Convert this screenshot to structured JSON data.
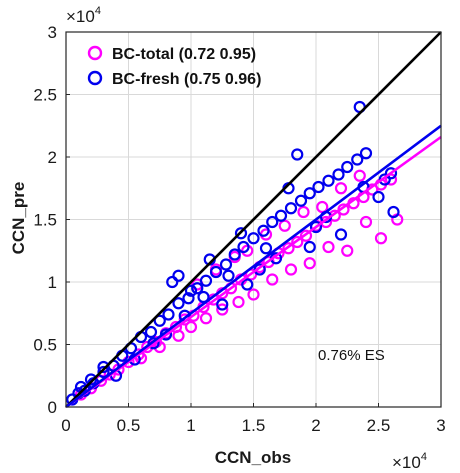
{
  "chart_data": {
    "type": "scatter",
    "xlabel": "CCN_obs",
    "ylabel": "CCN_pre",
    "xlim": [
      0,
      30000
    ],
    "ylim": [
      0,
      30000
    ],
    "xticks": [
      0,
      5000,
      10000,
      15000,
      20000,
      25000,
      30000
    ],
    "yticks": [
      0,
      5000,
      10000,
      15000,
      20000,
      25000,
      30000
    ],
    "xtick_labels": [
      "0",
      "0.5",
      "1",
      "1.5",
      "2",
      "2.5",
      "3"
    ],
    "ytick_labels": [
      "0",
      "0.5",
      "1",
      "1.5",
      "2",
      "2.5",
      "3"
    ],
    "x_exponent_base": "×10",
    "x_exponent_power": "4",
    "y_exponent_base": "×10",
    "y_exponent_power": "4",
    "grid": true,
    "legend_position": "top-left",
    "annotation": "0.76% ES",
    "one_to_one_line": {
      "x": [
        0,
        30000
      ],
      "y": [
        0,
        30000
      ],
      "color": "#000000"
    },
    "series": [
      {
        "name": "BC-total (0.72 0.95)",
        "color": "#ff00ff",
        "marker": "open-circle",
        "fit": {
          "slope": 0.72,
          "x_range": [
            0,
            30000
          ]
        },
        "points": [
          [
            1200,
            1000
          ],
          [
            2000,
            1500
          ],
          [
            2800,
            2100
          ],
          [
            3500,
            2600
          ],
          [
            4200,
            3000
          ],
          [
            5000,
            3600
          ],
          [
            5800,
            4200
          ],
          [
            6500,
            4800
          ],
          [
            7200,
            5200
          ],
          [
            8000,
            5900
          ],
          [
            8800,
            6400
          ],
          [
            9500,
            7000
          ],
          [
            10200,
            7300
          ],
          [
            11000,
            8000
          ],
          [
            11800,
            8600
          ],
          [
            12500,
            9100
          ],
          [
            13200,
            9500
          ],
          [
            14000,
            10200
          ],
          [
            14800,
            10600
          ],
          [
            15500,
            11200
          ],
          [
            16200,
            11600
          ],
          [
            17000,
            12300
          ],
          [
            17800,
            12700
          ],
          [
            18500,
            13200
          ],
          [
            19200,
            13700
          ],
          [
            20000,
            14500
          ],
          [
            20800,
            14800
          ],
          [
            21500,
            15300
          ],
          [
            22200,
            15800
          ],
          [
            23000,
            16300
          ],
          [
            23800,
            16800
          ],
          [
            24500,
            17400
          ],
          [
            25200,
            17800
          ],
          [
            26000,
            18200
          ],
          [
            26500,
            15000
          ],
          [
            25200,
            13500
          ],
          [
            24000,
            14800
          ],
          [
            22500,
            12500
          ],
          [
            21000,
            12800
          ],
          [
            19500,
            11500
          ],
          [
            18000,
            11000
          ],
          [
            16500,
            10200
          ],
          [
            15000,
            9000
          ],
          [
            13800,
            8400
          ],
          [
            12500,
            7800
          ],
          [
            11200,
            7100
          ],
          [
            10000,
            6400
          ],
          [
            9000,
            5700
          ],
          [
            7500,
            4800
          ],
          [
            6000,
            3900
          ],
          [
            14500,
            12500
          ],
          [
            16000,
            13800
          ],
          [
            17500,
            14500
          ],
          [
            19000,
            15600
          ],
          [
            12000,
            11000
          ],
          [
            13500,
            12000
          ],
          [
            10500,
            9800
          ],
          [
            20500,
            16000
          ],
          [
            22000,
            17500
          ],
          [
            23500,
            18500
          ]
        ]
      },
      {
        "name": "BC-fresh (0.75 0.96)",
        "color": "#0000ee",
        "marker": "open-circle",
        "fit": {
          "slope": 0.75,
          "x_range": [
            0,
            30000
          ]
        },
        "points": [
          [
            500,
            600
          ],
          [
            1000,
            1100
          ],
          [
            1500,
            1300
          ],
          [
            2200,
            1900
          ],
          [
            3000,
            2800
          ],
          [
            3800,
            3300
          ],
          [
            4500,
            4100
          ],
          [
            5200,
            4700
          ],
          [
            6000,
            5600
          ],
          [
            6800,
            6000
          ],
          [
            7500,
            6900
          ],
          [
            8200,
            7400
          ],
          [
            9000,
            8300
          ],
          [
            9800,
            8700
          ],
          [
            10500,
            9500
          ],
          [
            11200,
            10100
          ],
          [
            12000,
            10800
          ],
          [
            12800,
            11400
          ],
          [
            13500,
            12200
          ],
          [
            14200,
            12800
          ],
          [
            15000,
            13500
          ],
          [
            15800,
            14100
          ],
          [
            16500,
            14800
          ],
          [
            17200,
            15300
          ],
          [
            18000,
            15900
          ],
          [
            18800,
            16500
          ],
          [
            19500,
            17100
          ],
          [
            20200,
            17600
          ],
          [
            21000,
            18100
          ],
          [
            21800,
            18600
          ],
          [
            22500,
            19200
          ],
          [
            23300,
            19800
          ],
          [
            24000,
            20300
          ],
          [
            26000,
            18700
          ],
          [
            26200,
            15600
          ],
          [
            23500,
            24000
          ],
          [
            18500,
            20200
          ],
          [
            17800,
            17500
          ],
          [
            20800,
            15200
          ],
          [
            14500,
            9800
          ],
          [
            12500,
            8200
          ],
          [
            11000,
            8800
          ],
          [
            9500,
            7300
          ],
          [
            8000,
            5800
          ],
          [
            7000,
            5100
          ],
          [
            5500,
            3800
          ],
          [
            4000,
            2500
          ],
          [
            3000,
            3200
          ],
          [
            2000,
            2200
          ],
          [
            1200,
            1600
          ],
          [
            23800,
            17600
          ],
          [
            25000,
            16800
          ],
          [
            22000,
            13800
          ],
          [
            19500,
            12800
          ],
          [
            16800,
            11900
          ],
          [
            15500,
            11000
          ],
          [
            13000,
            10500
          ],
          [
            10000,
            9300
          ],
          [
            9000,
            10500
          ],
          [
            11500,
            11800
          ],
          [
            8500,
            10000
          ],
          [
            14000,
            13900
          ],
          [
            16000,
            12700
          ],
          [
            20000,
            14400
          ],
          [
            25500,
            18200
          ]
        ]
      }
    ]
  }
}
